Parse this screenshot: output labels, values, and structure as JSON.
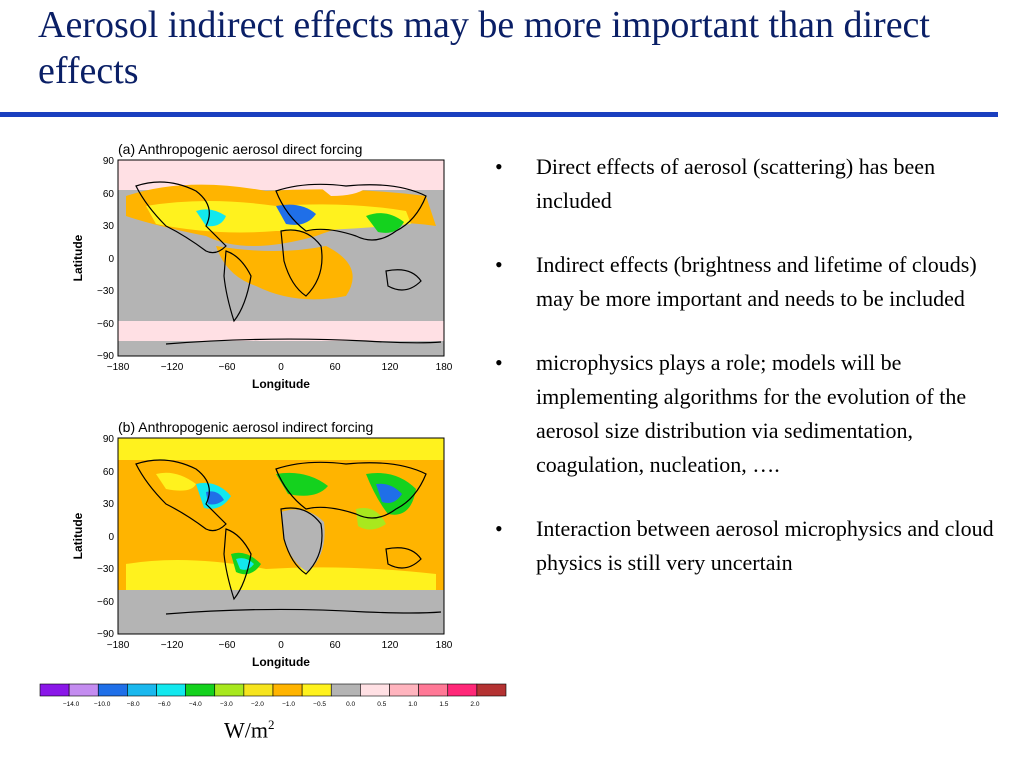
{
  "slide": {
    "title": "Aerosol indirect effects may be more important than direct effects",
    "bullets": [
      "Direct effects of aerosol (scattering) has been included",
      "Indirect effects (brightness and lifetime of clouds) may be more important and needs to be included",
      "microphysics plays a role; models will be implementing algorithms for the evolution of the aerosol size distribution via sedimentation, coagulation, nucleation, ….",
      "Interaction between aerosol microphysics and cloud physics is still very uncertain"
    ],
    "bullet_glyph": "•"
  },
  "maps": {
    "direct": {
      "title": "(a) Anthropogenic aerosol direct forcing"
    },
    "indirect": {
      "title": "(b) Anthropogenic aerosol indirect forcing"
    },
    "xlabel": "Longitude",
    "ylabel": "Latitude",
    "xticks": [
      "−180",
      "−120",
      "−60",
      "0",
      "60",
      "120",
      "180"
    ],
    "yticks": [
      "90",
      "60",
      "30",
      "0",
      "−30",
      "−60",
      "−90"
    ]
  },
  "colorbar": {
    "colors": [
      "#8a17e8",
      "#c48cf0",
      "#1f6fe8",
      "#1ab8ee",
      "#12e8ee",
      "#14d21e",
      "#a8e81e",
      "#f6e41e",
      "#ffb400",
      "#fff21e",
      "#b4b4b4",
      "#ffe0e4",
      "#ffb4be",
      "#ff7896",
      "#ff2878",
      "#b43232"
    ],
    "labels": [
      "−14.0",
      "−10.0",
      "−8.0",
      "−6.0",
      "−4.0",
      "−3.0",
      "−2.0",
      "−1.0",
      "−0.5",
      "0.0",
      "0.5",
      "1.0",
      "1.5",
      "2.0"
    ],
    "units_base": "W/m",
    "units_exp": "2"
  }
}
